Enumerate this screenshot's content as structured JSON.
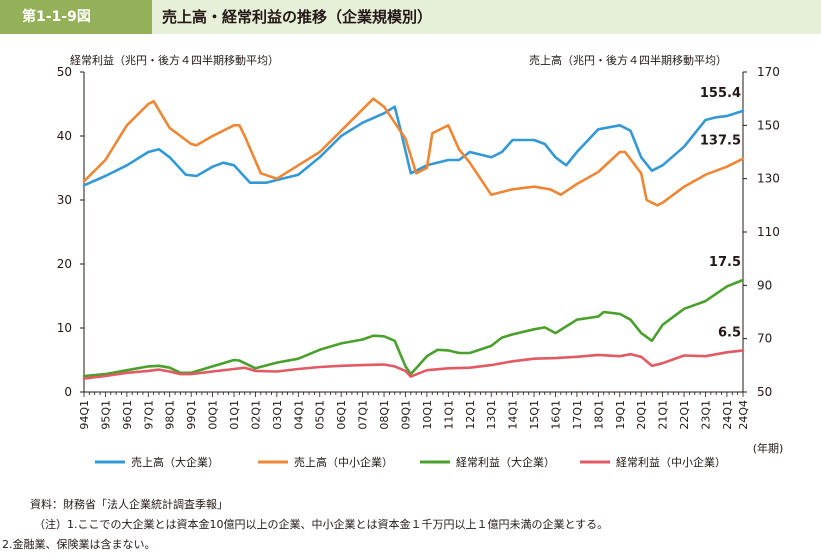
{
  "header": {
    "figure_number": "第1-1-9図",
    "title": "売上高・経常利益の推移（企業規模別）"
  },
  "chart_data": {
    "type": "line",
    "left_axis": {
      "label": "経常利益（兆円・後方４四半期移動平均）",
      "range": [
        0,
        50
      ],
      "ticks": [
        "0",
        "10",
        "20",
        "30",
        "40",
        "50"
      ]
    },
    "right_axis": {
      "label": "売上高（兆円・後方４四半期移動平均）",
      "range": [
        50,
        170
      ],
      "ticks": [
        "50",
        "70",
        "90",
        "110",
        "130",
        "150",
        "170"
      ]
    },
    "x_unit_label": "(年期)",
    "x_ticks": [
      "94Q1",
      "95Q1",
      "96Q1",
      "97Q1",
      "98Q1",
      "99Q1",
      "00Q1",
      "01Q1",
      "02Q1",
      "03Q1",
      "04Q1",
      "05Q1",
      "06Q1",
      "07Q1",
      "08Q1",
      "09Q1",
      "10Q1",
      "11Q1",
      "12Q1",
      "13Q1",
      "14Q1",
      "15Q1",
      "16Q1",
      "17Q1",
      "18Q1",
      "19Q1",
      "20Q1",
      "21Q1",
      "22Q1",
      "23Q1",
      "24Q1",
      "24Q4"
    ],
    "series": [
      {
        "name": "売上高（大企業）",
        "axis": "right",
        "color": "#3399d6",
        "points": [
          [
            "94Q1",
            127.5
          ],
          [
            "95Q1",
            131
          ],
          [
            "96Q1",
            135
          ],
          [
            "97Q1",
            140
          ],
          [
            "97Q3",
            141
          ],
          [
            "98Q1",
            138
          ],
          [
            "98Q4",
            131.5
          ],
          [
            "99Q2",
            131
          ],
          [
            "00Q1",
            134.5
          ],
          [
            "00Q3",
            136
          ],
          [
            "01Q1",
            135
          ],
          [
            "01Q4",
            128.5
          ],
          [
            "02Q3",
            128.5
          ],
          [
            "03Q1",
            129.5
          ],
          [
            "04Q1",
            131.5
          ],
          [
            "05Q1",
            138
          ],
          [
            "06Q1",
            146
          ],
          [
            "07Q1",
            151
          ],
          [
            "08Q1",
            154.5
          ],
          [
            "08Q3",
            157
          ],
          [
            "08Q4",
            149
          ],
          [
            "09Q2",
            132
          ],
          [
            "10Q1",
            135
          ],
          [
            "11Q1",
            137
          ],
          [
            "11Q3",
            137
          ],
          [
            "12Q1",
            140
          ],
          [
            "13Q1",
            138
          ],
          [
            "13Q3",
            140
          ],
          [
            "14Q1",
            144.5
          ],
          [
            "15Q1",
            144.5
          ],
          [
            "15Q3",
            143
          ],
          [
            "16Q1",
            138
          ],
          [
            "16Q3",
            135
          ],
          [
            "17Q1",
            140
          ],
          [
            "18Q1",
            148.5
          ],
          [
            "19Q1",
            150
          ],
          [
            "19Q3",
            148
          ],
          [
            "20Q1",
            138
          ],
          [
            "20Q3",
            133
          ],
          [
            "21Q1",
            135
          ],
          [
            "22Q1",
            142
          ],
          [
            "23Q1",
            152
          ],
          [
            "23Q3",
            153
          ],
          [
            "24Q1",
            153.5
          ],
          [
            "24Q4",
            155.4
          ]
        ]
      },
      {
        "name": "売上高（中小企業）",
        "axis": "right",
        "color": "#ef8634",
        "points": [
          [
            "94Q1",
            129
          ],
          [
            "95Q1",
            137
          ],
          [
            "96Q1",
            150
          ],
          [
            "97Q1",
            158
          ],
          [
            "97Q2",
            159
          ],
          [
            "98Q1",
            149
          ],
          [
            "99Q1",
            143
          ],
          [
            "99Q2",
            142.5
          ],
          [
            "00Q1",
            146
          ],
          [
            "01Q1",
            150
          ],
          [
            "01Q2",
            150
          ],
          [
            "01Q3",
            146
          ],
          [
            "02Q2",
            132
          ],
          [
            "03Q1",
            130
          ],
          [
            "04Q1",
            135
          ],
          [
            "05Q1",
            140
          ],
          [
            "06Q1",
            148
          ],
          [
            "07Q1",
            156
          ],
          [
            "07Q3",
            160
          ],
          [
            "08Q1",
            157
          ],
          [
            "09Q1",
            145
          ],
          [
            "09Q3",
            132
          ],
          [
            "10Q1",
            134
          ],
          [
            "10Q2",
            147
          ],
          [
            "11Q1",
            150
          ],
          [
            "11Q3",
            141
          ],
          [
            "12Q1",
            136
          ],
          [
            "12Q3",
            130
          ],
          [
            "13Q1",
            124
          ],
          [
            "14Q1",
            126
          ],
          [
            "15Q1",
            127
          ],
          [
            "15Q4",
            126
          ],
          [
            "16Q2",
            124
          ],
          [
            "17Q1",
            128
          ],
          [
            "18Q1",
            132.5
          ],
          [
            "19Q1",
            140
          ],
          [
            "19Q2",
            140
          ],
          [
            "20Q1",
            132
          ],
          [
            "20Q2",
            122
          ],
          [
            "20Q4",
            120
          ],
          [
            "21Q1",
            121
          ],
          [
            "22Q1",
            127
          ],
          [
            "23Q1",
            131.5
          ],
          [
            "24Q1",
            134.5
          ],
          [
            "24Q4",
            137.5
          ]
        ]
      },
      {
        "name": "経常利益（大企業）",
        "axis": "left",
        "color": "#4aa02c",
        "points": [
          [
            "94Q1",
            2.5
          ],
          [
            "95Q1",
            2.8
          ],
          [
            "96Q1",
            3.4
          ],
          [
            "97Q1",
            4
          ],
          [
            "97Q3",
            4.1
          ],
          [
            "98Q1",
            3.8
          ],
          [
            "98Q3",
            3
          ],
          [
            "99Q1",
            3
          ],
          [
            "00Q1",
            4
          ],
          [
            "01Q1",
            5
          ],
          [
            "01Q2",
            4.9
          ],
          [
            "02Q1",
            3.7
          ],
          [
            "03Q1",
            4.6
          ],
          [
            "04Q1",
            5.2
          ],
          [
            "05Q1",
            6.6
          ],
          [
            "06Q1",
            7.6
          ],
          [
            "07Q1",
            8.2
          ],
          [
            "07Q3",
            8.8
          ],
          [
            "08Q1",
            8.7
          ],
          [
            "08Q3",
            8
          ],
          [
            "09Q1",
            4
          ],
          [
            "09Q2",
            2.8
          ],
          [
            "10Q1",
            5.6
          ],
          [
            "10Q3",
            6.6
          ],
          [
            "11Q1",
            6.5
          ],
          [
            "11Q3",
            6.1
          ],
          [
            "12Q1",
            6.1
          ],
          [
            "13Q1",
            7.2
          ],
          [
            "13Q3",
            8.5
          ],
          [
            "14Q1",
            9
          ],
          [
            "15Q1",
            9.8
          ],
          [
            "15Q3",
            10.1
          ],
          [
            "16Q1",
            9.2
          ],
          [
            "17Q1",
            11.3
          ],
          [
            "18Q1",
            11.8
          ],
          [
            "18Q2",
            12.5
          ],
          [
            "19Q1",
            12.2
          ],
          [
            "19Q3",
            11.3
          ],
          [
            "20Q1",
            9.2
          ],
          [
            "20Q3",
            8
          ],
          [
            "21Q1",
            10.5
          ],
          [
            "22Q1",
            13
          ],
          [
            "23Q1",
            14.2
          ],
          [
            "24Q1",
            16.5
          ],
          [
            "24Q4",
            17.5
          ]
        ]
      },
      {
        "name": "経常利益（中小企業）",
        "axis": "left",
        "color": "#e25a63",
        "points": [
          [
            "94Q1",
            2.1
          ],
          [
            "95Q1",
            2.5
          ],
          [
            "96Q1",
            3
          ],
          [
            "97Q1",
            3.3
          ],
          [
            "97Q3",
            3.5
          ],
          [
            "98Q1",
            3.2
          ],
          [
            "98Q3",
            2.8
          ],
          [
            "99Q1",
            2.8
          ],
          [
            "00Q1",
            3.2
          ],
          [
            "01Q1",
            3.6
          ],
          [
            "01Q3",
            3.8
          ],
          [
            "02Q1",
            3.3
          ],
          [
            "03Q1",
            3.2
          ],
          [
            "04Q1",
            3.6
          ],
          [
            "05Q1",
            3.9
          ],
          [
            "06Q1",
            4.1
          ],
          [
            "07Q1",
            4.2
          ],
          [
            "08Q1",
            4.3
          ],
          [
            "08Q3",
            4
          ],
          [
            "09Q1",
            3.3
          ],
          [
            "09Q2",
            2.4
          ],
          [
            "10Q1",
            3.4
          ],
          [
            "11Q1",
            3.7
          ],
          [
            "12Q1",
            3.8
          ],
          [
            "13Q1",
            4.2
          ],
          [
            "14Q1",
            4.8
          ],
          [
            "15Q1",
            5.2
          ],
          [
            "16Q1",
            5.3
          ],
          [
            "17Q1",
            5.5
          ],
          [
            "18Q1",
            5.8
          ],
          [
            "19Q1",
            5.6
          ],
          [
            "19Q3",
            5.9
          ],
          [
            "20Q1",
            5.5
          ],
          [
            "20Q3",
            4.1
          ],
          [
            "21Q1",
            4.5
          ],
          [
            "22Q1",
            5.7
          ],
          [
            "23Q1",
            5.6
          ],
          [
            "24Q1",
            6.2
          ],
          [
            "24Q4",
            6.5
          ]
        ]
      }
    ],
    "end_labels": [
      {
        "text": "155.4",
        "series": 0
      },
      {
        "text": "137.5",
        "series": 1
      },
      {
        "text": "17.5",
        "series": 2
      },
      {
        "text": "6.5",
        "series": 3
      }
    ],
    "legend_placement": "bottom"
  },
  "notes": {
    "source": "資料：財務省「法人企業統計調査季報」",
    "note1": "（注）1.ここでの大企業とは資本金10億円以上の企業、中小企業とは資本金１千万円以上１億円未満の企業とする。",
    "note2": "2.金融業、保険業は含まない。"
  }
}
